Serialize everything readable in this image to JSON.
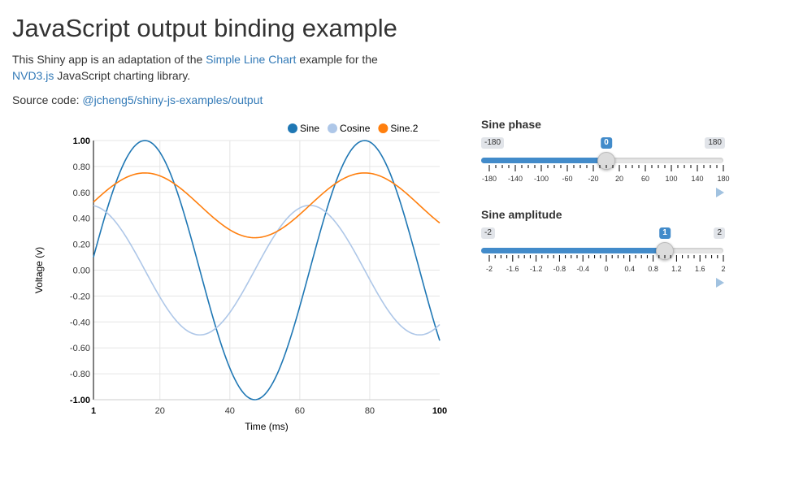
{
  "page": {
    "title": "JavaScript output binding example",
    "intro": {
      "text1": "This Shiny app is an adaptation of the ",
      "link1": "Simple Line Chart",
      "text2": " example for the ",
      "link2": "NVD3.js",
      "text3": " JavaScript charting library."
    },
    "source": {
      "label": "Source code: ",
      "link": "@jcheng5/shiny-js-examples/output"
    }
  },
  "sliders": [
    {
      "label": "Sine phase",
      "min_label": "-180",
      "max_label": "180",
      "value_label": "0",
      "value": 0,
      "min": -180,
      "max": 180,
      "ticks": [
        "-180",
        "-140",
        "-100",
        "-60",
        "-20",
        "20",
        "60",
        "100",
        "140",
        "180"
      ]
    },
    {
      "label": "Sine amplitude",
      "min_label": "-2",
      "max_label": "2",
      "value_label": "1",
      "value": 1,
      "min": -2,
      "max": 2,
      "ticks": [
        "-2",
        "-1.6",
        "-1.2",
        "-0.8",
        "-0.4",
        "0",
        "0.4",
        "0.8",
        "1.2",
        "1.6",
        "2"
      ]
    }
  ],
  "colors": {
    "sine": "#1f77b4",
    "cosine": "#aec7e8",
    "sine2": "#ff7f0e",
    "link": "#337ab7",
    "slider_accent": "#428bca"
  },
  "chart_data": {
    "type": "line",
    "xlabel": "Time (ms)",
    "ylabel": "Voltage (v)",
    "xlim": [
      1,
      100
    ],
    "ylim": [
      -1,
      1
    ],
    "x_ticks": [
      "1",
      "20",
      "40",
      "60",
      "80",
      "100"
    ],
    "y_ticks": [
      "1.00",
      "0.80",
      "0.60",
      "0.40",
      "0.20",
      "0.00",
      "-0.20",
      "-0.40",
      "-0.60",
      "-0.80",
      "-1.00"
    ],
    "legend_position": "top-right",
    "grid": true,
    "series": [
      {
        "name": "Sine",
        "color": "#1f77b4",
        "x": [
          1,
          5,
          10,
          15,
          20,
          25,
          30,
          35,
          40,
          45,
          50,
          55,
          60,
          65,
          70,
          75,
          80,
          85,
          90,
          95,
          100
        ],
        "values": [
          0.1,
          0.48,
          0.84,
          1.0,
          0.91,
          0.6,
          0.14,
          -0.35,
          -0.76,
          -0.99,
          -0.96,
          -0.68,
          -0.25,
          0.24,
          0.67,
          0.96,
          0.99,
          0.75,
          0.33,
          -0.15,
          -0.54
        ]
      },
      {
        "name": "Cosine",
        "color": "#aec7e8",
        "x": [
          1,
          5,
          10,
          15,
          20,
          25,
          30,
          35,
          40,
          45,
          50,
          55,
          60,
          65,
          70,
          75,
          80,
          85,
          90,
          95,
          100
        ],
        "values": [
          0.5,
          0.44,
          0.27,
          0.04,
          -0.21,
          -0.4,
          -0.49,
          -0.47,
          -0.32,
          -0.08,
          0.14,
          0.37,
          0.48,
          0.48,
          0.37,
          0.14,
          -0.09,
          -0.33,
          -0.47,
          -0.49,
          -0.42
        ]
      },
      {
        "name": "Sine.2",
        "color": "#ff7f0e",
        "x": [
          1,
          5,
          10,
          15,
          20,
          25,
          30,
          35,
          40,
          45,
          50,
          55,
          60,
          65,
          70,
          75,
          80,
          85,
          90,
          95,
          100
        ],
        "values": [
          0.52,
          0.62,
          0.71,
          0.75,
          0.73,
          0.65,
          0.53,
          0.41,
          0.31,
          0.25,
          0.26,
          0.33,
          0.44,
          0.56,
          0.67,
          0.74,
          0.75,
          0.69,
          0.58,
          0.46,
          0.36
        ]
      }
    ]
  }
}
